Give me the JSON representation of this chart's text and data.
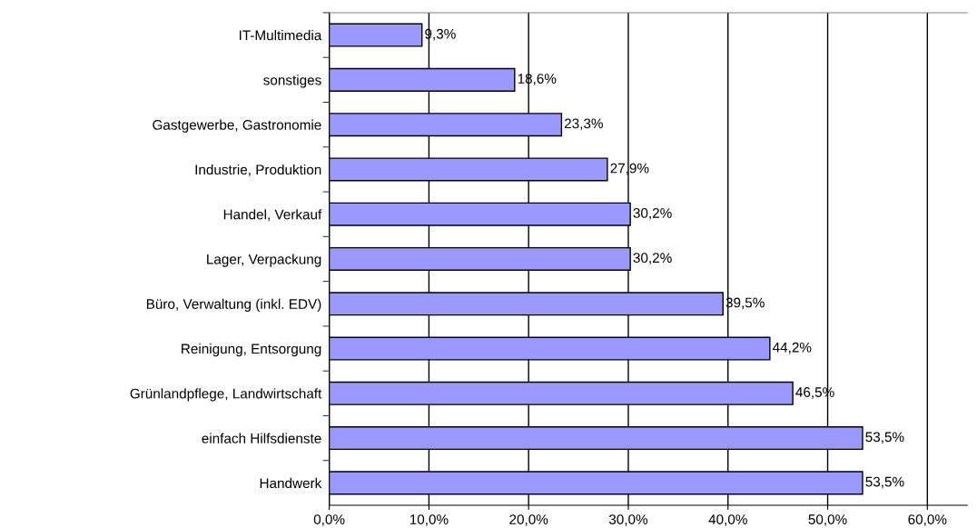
{
  "chart_data": {
    "type": "bar",
    "orientation": "horizontal",
    "categories": [
      "IT-Multimedia",
      "sonstiges",
      "Gastgewerbe, Gastronomie",
      "Industrie, Produktion",
      "Handel, Verkauf",
      "Lager, Verpackung",
      "Büro, Verwaltung (inkl. EDV)",
      "Reinigung, Entsorgung",
      "Grünlandpflege, Landwirtschaft",
      "einfach Hilfsdienste",
      "Handwerk"
    ],
    "values": [
      9.3,
      18.6,
      23.3,
      27.9,
      30.2,
      30.2,
      39.5,
      44.2,
      46.5,
      53.5,
      53.5
    ],
    "value_labels": [
      "9,3%",
      "18,6%",
      "23,3%",
      "27,9%",
      "30,2%",
      "30,2%",
      "39,5%",
      "44,2%",
      "46,5%",
      "53,5%",
      "53,5%"
    ],
    "color": "#9999ff",
    "xlim": [
      0,
      64
    ],
    "xticks": [
      {
        "value": 0,
        "label": "0,0%"
      },
      {
        "value": 10,
        "label": "10,0%"
      },
      {
        "value": 20,
        "label": "20,0%"
      },
      {
        "value": 30,
        "label": "30,0%"
      },
      {
        "value": 40,
        "label": "40,0%"
      },
      {
        "value": 50,
        "label": "50,0%"
      },
      {
        "value": 60,
        "label": "60,0%"
      }
    ],
    "grid": "x",
    "legend": false
  }
}
